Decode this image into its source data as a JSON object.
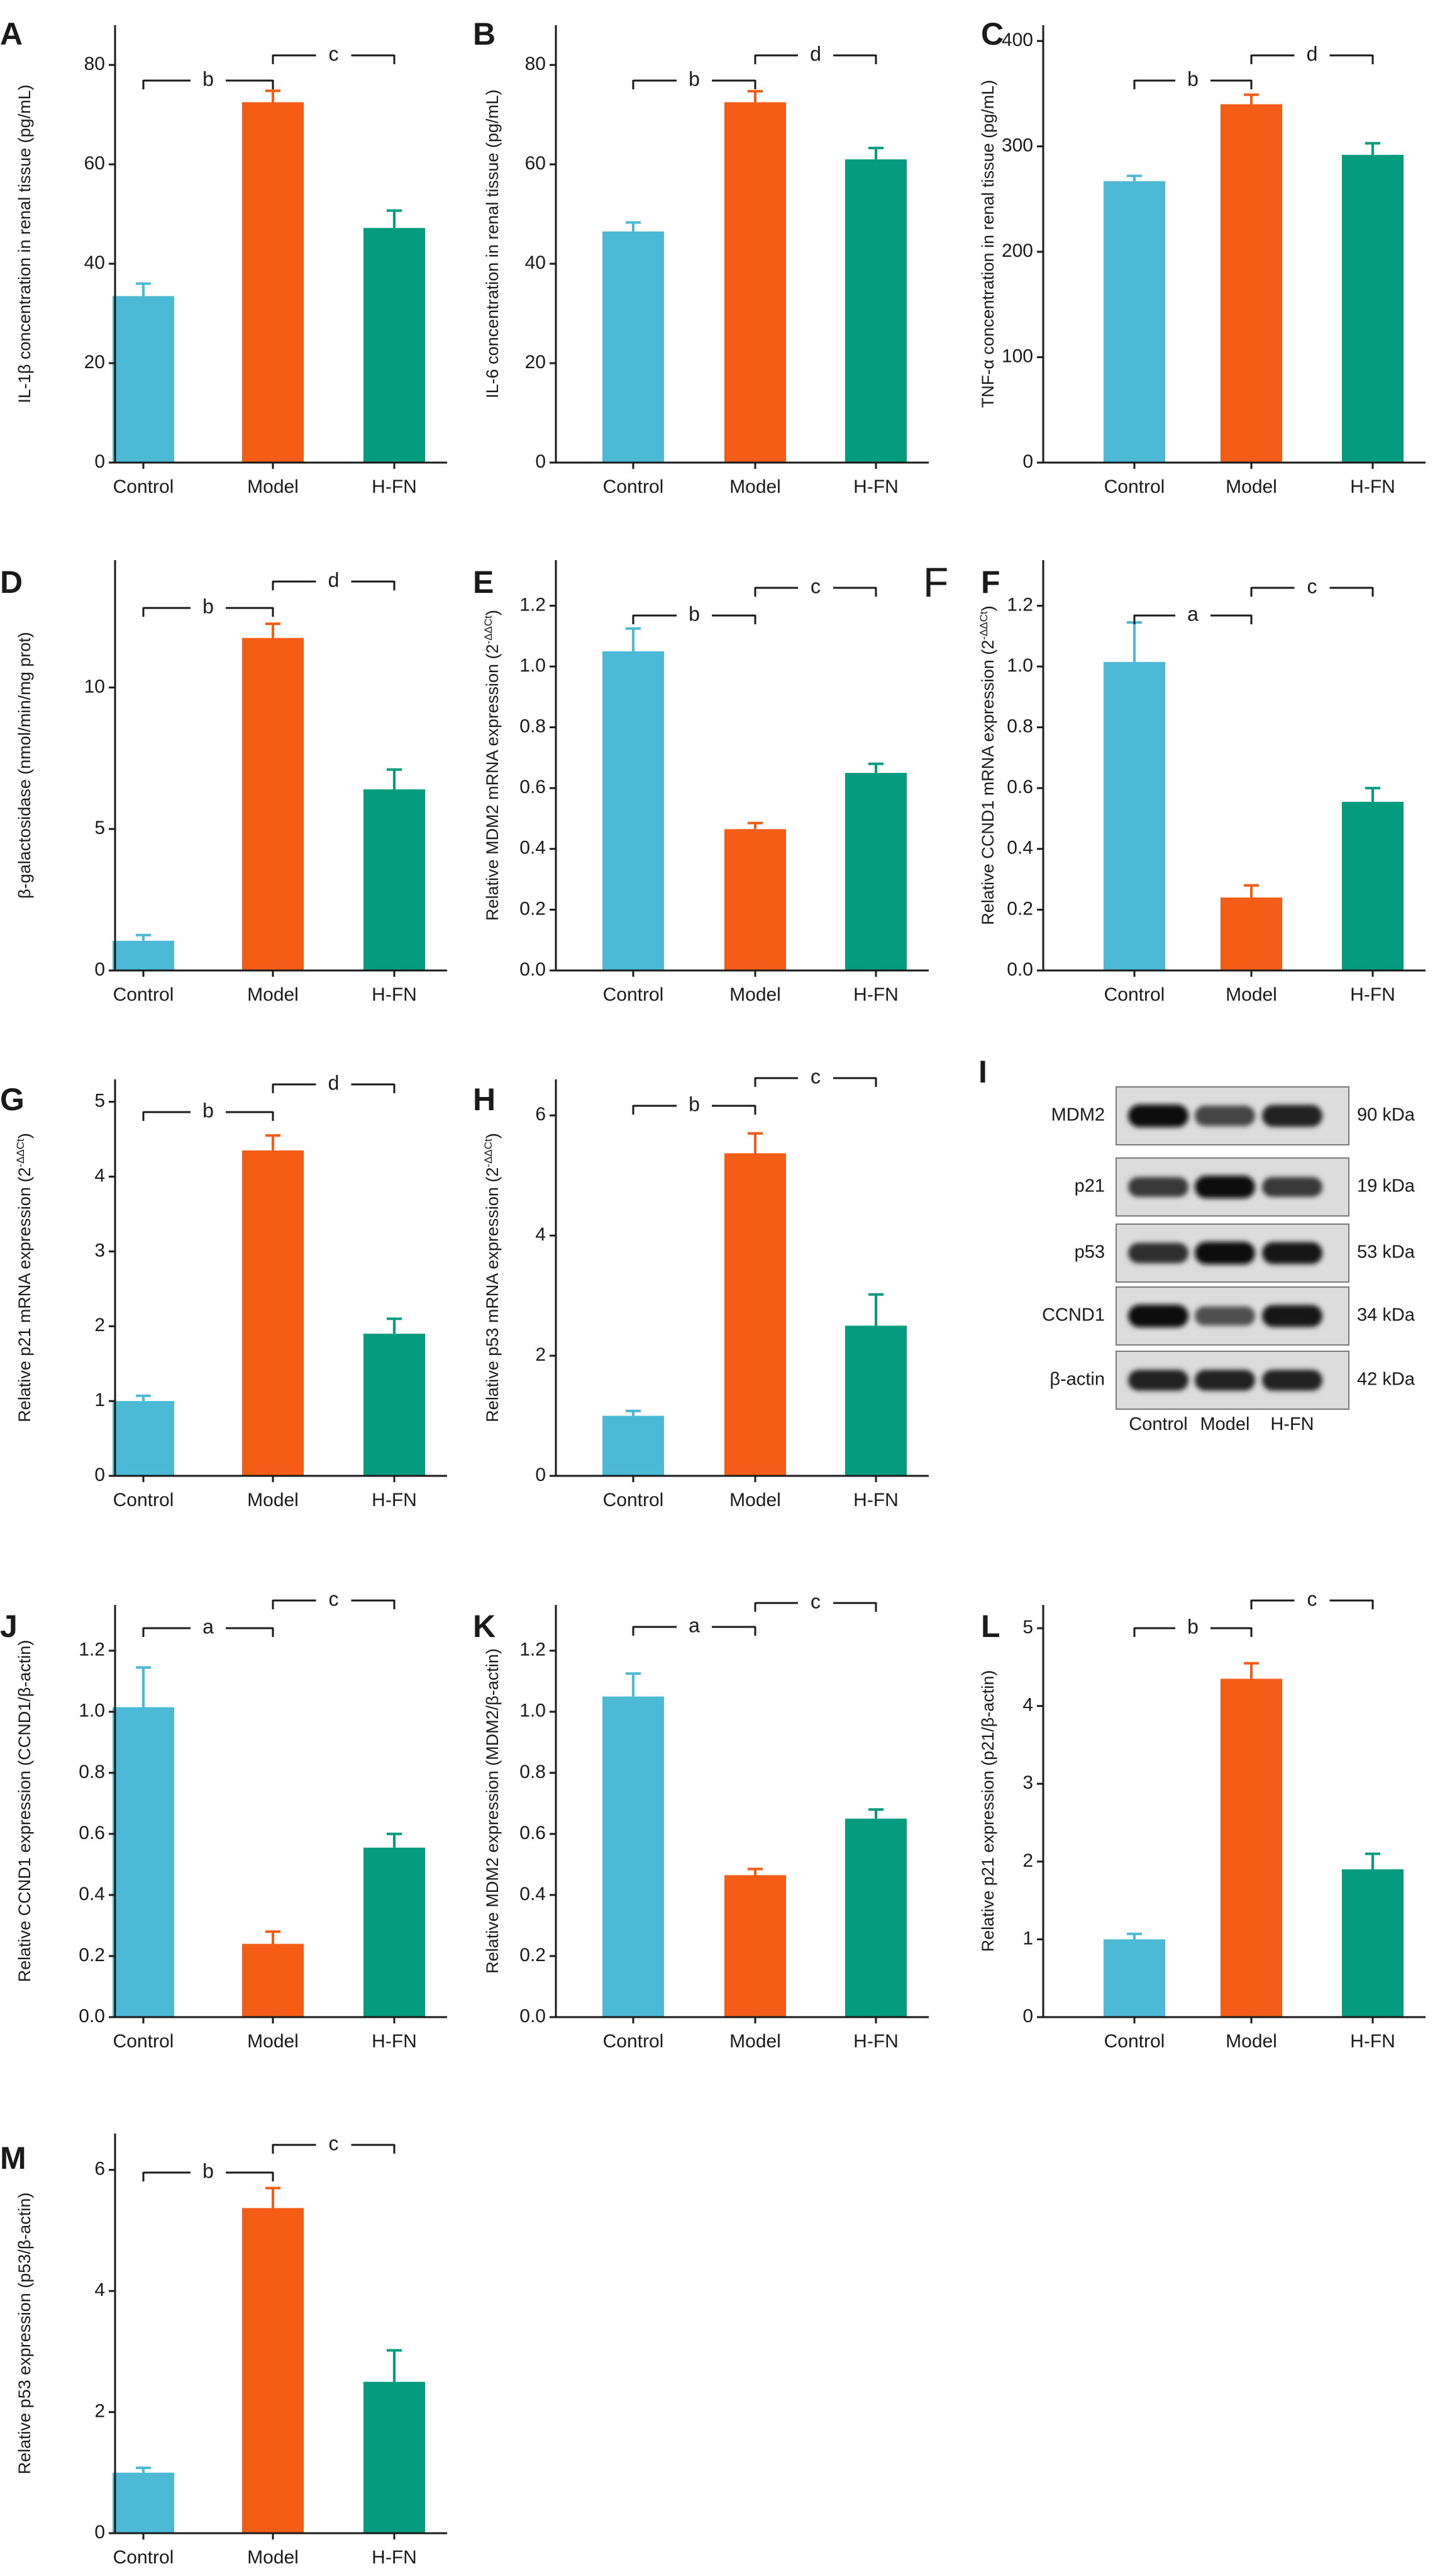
{
  "colors": {
    "Control": "#4cb9d6",
    "Model": "#f55c16",
    "H-FN": "#049b7e",
    "axis": "#1a1a1a"
  },
  "chart_data": [
    {
      "panel": "A",
      "type": "bar",
      "ylabel": "IL-1β concentration in renal tissue (pg/mL)",
      "categories": [
        "Control",
        "Model",
        "H-FN"
      ],
      "values": [
        33.5,
        72.5,
        47.2
      ],
      "errors": [
        2.5,
        2.3,
        3.5
      ],
      "ylim": [
        0,
        88
      ],
      "yticks": [
        0,
        20,
        40,
        60,
        80
      ],
      "brackets": [
        {
          "from": 0,
          "to": 1,
          "label": "b"
        },
        {
          "from": 1,
          "to": 2,
          "label": "c"
        }
      ]
    },
    {
      "panel": "B",
      "type": "bar",
      "ylabel": "IL-6 concentration in renal tissue (pg/mL)",
      "categories": [
        "Control",
        "Model",
        "H-FN"
      ],
      "values": [
        46.5,
        72.5,
        61.0
      ],
      "errors": [
        1.8,
        2.2,
        2.3
      ],
      "ylim": [
        0,
        88
      ],
      "yticks": [
        0,
        20,
        40,
        60,
        80
      ],
      "brackets": [
        {
          "from": 0,
          "to": 1,
          "label": "b"
        },
        {
          "from": 1,
          "to": 2,
          "label": "d"
        }
      ]
    },
    {
      "panel": "C",
      "type": "bar",
      "ylabel": "TNF-α concentration in renal tissue (pg/mL)",
      "categories": [
        "Control",
        "Model",
        "H-FN"
      ],
      "values": [
        267,
        340,
        292
      ],
      "errors": [
        5,
        9,
        11
      ],
      "ylim": [
        0,
        415
      ],
      "yticks": [
        0,
        100,
        200,
        300,
        400
      ],
      "brackets": [
        {
          "from": 0,
          "to": 1,
          "label": "b"
        },
        {
          "from": 1,
          "to": 2,
          "label": "d"
        }
      ]
    },
    {
      "panel": "D",
      "type": "bar",
      "ylabel": "β-galactosidase (nmol/min/mg prot)",
      "categories": [
        "Control",
        "Model",
        "H-FN"
      ],
      "values": [
        1.05,
        11.75,
        6.4
      ],
      "errors": [
        0.2,
        0.5,
        0.7
      ],
      "ylim": [
        0,
        14.5
      ],
      "yticks": [
        0,
        5,
        10
      ],
      "brackets": [
        {
          "from": 0,
          "to": 1,
          "label": "b"
        },
        {
          "from": 1,
          "to": 2,
          "label": "d"
        }
      ]
    },
    {
      "panel": "E",
      "type": "bar",
      "ylabel": "Relative MDM2 mRNA expression (2",
      "ylabel_sup": "-ΔΔCt",
      "ylabel_end": ")",
      "categories": [
        "Control",
        "Model",
        "H-FN"
      ],
      "values": [
        1.05,
        0.465,
        0.65
      ],
      "errors": [
        0.075,
        0.02,
        0.03
      ],
      "ylim": [
        0,
        1.35
      ],
      "yticks": [
        0.0,
        0.2,
        0.4,
        0.6,
        0.8,
        1.0,
        1.2
      ],
      "brackets": [
        {
          "from": 0,
          "to": 1,
          "label": "b"
        },
        {
          "from": 1,
          "to": 2,
          "label": "c"
        }
      ]
    },
    {
      "panel": "F",
      "type": "bar",
      "ylabel": "Relative CCND1 mRNA expression (2",
      "ylabel_sup": "-ΔΔCt",
      "ylabel_end": ")",
      "categories": [
        "Control",
        "Model",
        "H-FN"
      ],
      "values": [
        1.015,
        0.24,
        0.555
      ],
      "errors": [
        0.13,
        0.04,
        0.045
      ],
      "ylim": [
        0,
        1.35
      ],
      "yticks": [
        0.0,
        0.2,
        0.4,
        0.6,
        0.8,
        1.0,
        1.2
      ],
      "brackets": [
        {
          "from": 0,
          "to": 1,
          "label": "a"
        },
        {
          "from": 1,
          "to": 2,
          "label": "c"
        }
      ]
    },
    {
      "panel": "G",
      "type": "bar",
      "ylabel": "Relative p21 mRNA expression (2",
      "ylabel_sup": "-ΔΔCt",
      "ylabel_end": ")",
      "categories": [
        "Control",
        "Model",
        "H-FN"
      ],
      "values": [
        1.0,
        4.35,
        1.9
      ],
      "errors": [
        0.07,
        0.2,
        0.2
      ],
      "ylim": [
        0,
        5.3
      ],
      "yticks": [
        0,
        1,
        2,
        3,
        4,
        5
      ],
      "brackets": [
        {
          "from": 0,
          "to": 1,
          "label": "b"
        },
        {
          "from": 1,
          "to": 2,
          "label": "d"
        }
      ]
    },
    {
      "panel": "H",
      "type": "bar",
      "ylabel": "Relative p53 mRNA expression (2",
      "ylabel_sup": "-ΔΔCt",
      "ylabel_end": ")",
      "categories": [
        "Control",
        "Model",
        "H-FN"
      ],
      "values": [
        1.0,
        5.37,
        2.5
      ],
      "errors": [
        0.08,
        0.33,
        0.52
      ],
      "ylim": [
        0,
        6.6
      ],
      "yticks": [
        0,
        2,
        4,
        6
      ],
      "brackets": [
        {
          "from": 0,
          "to": 1,
          "label": "b"
        },
        {
          "from": 1,
          "to": 2,
          "label": "c"
        }
      ]
    },
    {
      "panel": "J",
      "type": "bar",
      "ylabel": "Relative CCND1 expression (CCND1/β-actin)",
      "categories": [
        "Control",
        "Model",
        "H-FN"
      ],
      "values": [
        1.015,
        0.24,
        0.555
      ],
      "errors": [
        0.13,
        0.04,
        0.045
      ],
      "ylim": [
        0,
        1.35
      ],
      "yticks": [
        0.0,
        0.2,
        0.4,
        0.6,
        0.8,
        1.0,
        1.2
      ],
      "brackets": [
        {
          "from": 0,
          "to": 1,
          "label": "a"
        },
        {
          "from": 1,
          "to": 2,
          "label": "c"
        }
      ]
    },
    {
      "panel": "K",
      "type": "bar",
      "ylabel": "Relative MDM2 expression (MDM2/β-actin)",
      "categories": [
        "Control",
        "Model",
        "H-FN"
      ],
      "values": [
        1.05,
        0.465,
        0.65
      ],
      "errors": [
        0.075,
        0.02,
        0.03
      ],
      "ylim": [
        0,
        1.35
      ],
      "yticks": [
        0.0,
        0.2,
        0.4,
        0.6,
        0.8,
        1.0,
        1.2
      ],
      "brackets": [
        {
          "from": 0,
          "to": 1,
          "label": "a"
        },
        {
          "from": 1,
          "to": 2,
          "label": "c"
        }
      ]
    },
    {
      "panel": "L",
      "type": "bar",
      "ylabel": "Relative p21 expression (p21/β-actin)",
      "categories": [
        "Control",
        "Model",
        "H-FN"
      ],
      "values": [
        1.0,
        4.35,
        1.9
      ],
      "errors": [
        0.07,
        0.2,
        0.2
      ],
      "ylim": [
        0,
        5.3
      ],
      "yticks": [
        0,
        1,
        2,
        3,
        4,
        5
      ],
      "brackets": [
        {
          "from": 0,
          "to": 1,
          "label": "b"
        },
        {
          "from": 1,
          "to": 2,
          "label": "c"
        }
      ]
    },
    {
      "panel": "M",
      "type": "bar",
      "ylabel": "Relative p53 expression (p53/β-actin)",
      "categories": [
        "Control",
        "Model",
        "H-FN"
      ],
      "values": [
        1.0,
        5.37,
        2.5
      ],
      "errors": [
        0.08,
        0.33,
        0.52
      ],
      "ylim": [
        0,
        6.6
      ],
      "yticks": [
        0,
        2,
        4,
        6
      ],
      "brackets": [
        {
          "from": 0,
          "to": 1,
          "label": "b"
        },
        {
          "from": 1,
          "to": 2,
          "label": "c"
        }
      ]
    }
  ],
  "blot": {
    "panel": "I",
    "lanes": [
      "Control",
      "Model",
      "H-FN"
    ],
    "rows": [
      {
        "protein": "MDM2",
        "size": "90 kDa",
        "intensity": [
          0.95,
          0.7,
          0.85
        ],
        "thickness": [
          1.0,
          0.8,
          0.95
        ]
      },
      {
        "protein": "p21",
        "size": "19 kDa",
        "intensity": [
          0.75,
          0.95,
          0.75
        ],
        "thickness": [
          0.75,
          1.0,
          0.75
        ]
      },
      {
        "protein": "p53",
        "size": "53 kDa",
        "intensity": [
          0.8,
          0.95,
          0.9
        ],
        "thickness": [
          0.8,
          1.0,
          0.95
        ]
      },
      {
        "protein": "CCND1",
        "size": "34 kDa",
        "intensity": [
          0.95,
          0.65,
          0.9
        ],
        "thickness": [
          1.0,
          0.7,
          0.95
        ]
      },
      {
        "protein": "β-actin",
        "size": "42 kDa",
        "intensity": [
          0.85,
          0.85,
          0.85
        ],
        "thickness": [
          0.85,
          0.85,
          0.85
        ]
      }
    ]
  },
  "stray_label": "F"
}
